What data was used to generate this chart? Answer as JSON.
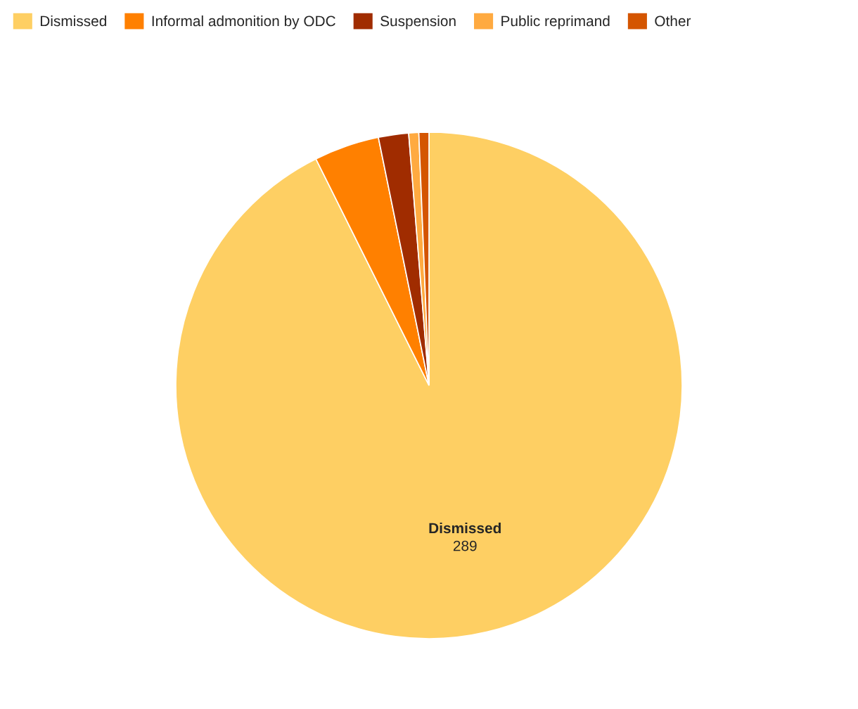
{
  "chart_data": {
    "type": "pie",
    "categories": [
      "Dismissed",
      "Informal admonition by ODC",
      "Suspension",
      "Public reprimand",
      "Other"
    ],
    "values": [
      289,
      13,
      6,
      2,
      2
    ],
    "value_labels": [
      "289",
      null,
      null,
      null,
      null
    ],
    "colors": [
      "#fecf63",
      "#ff8000",
      "#a02c00",
      "#ffaa40",
      "#d45500"
    ],
    "legend": "top left"
  }
}
